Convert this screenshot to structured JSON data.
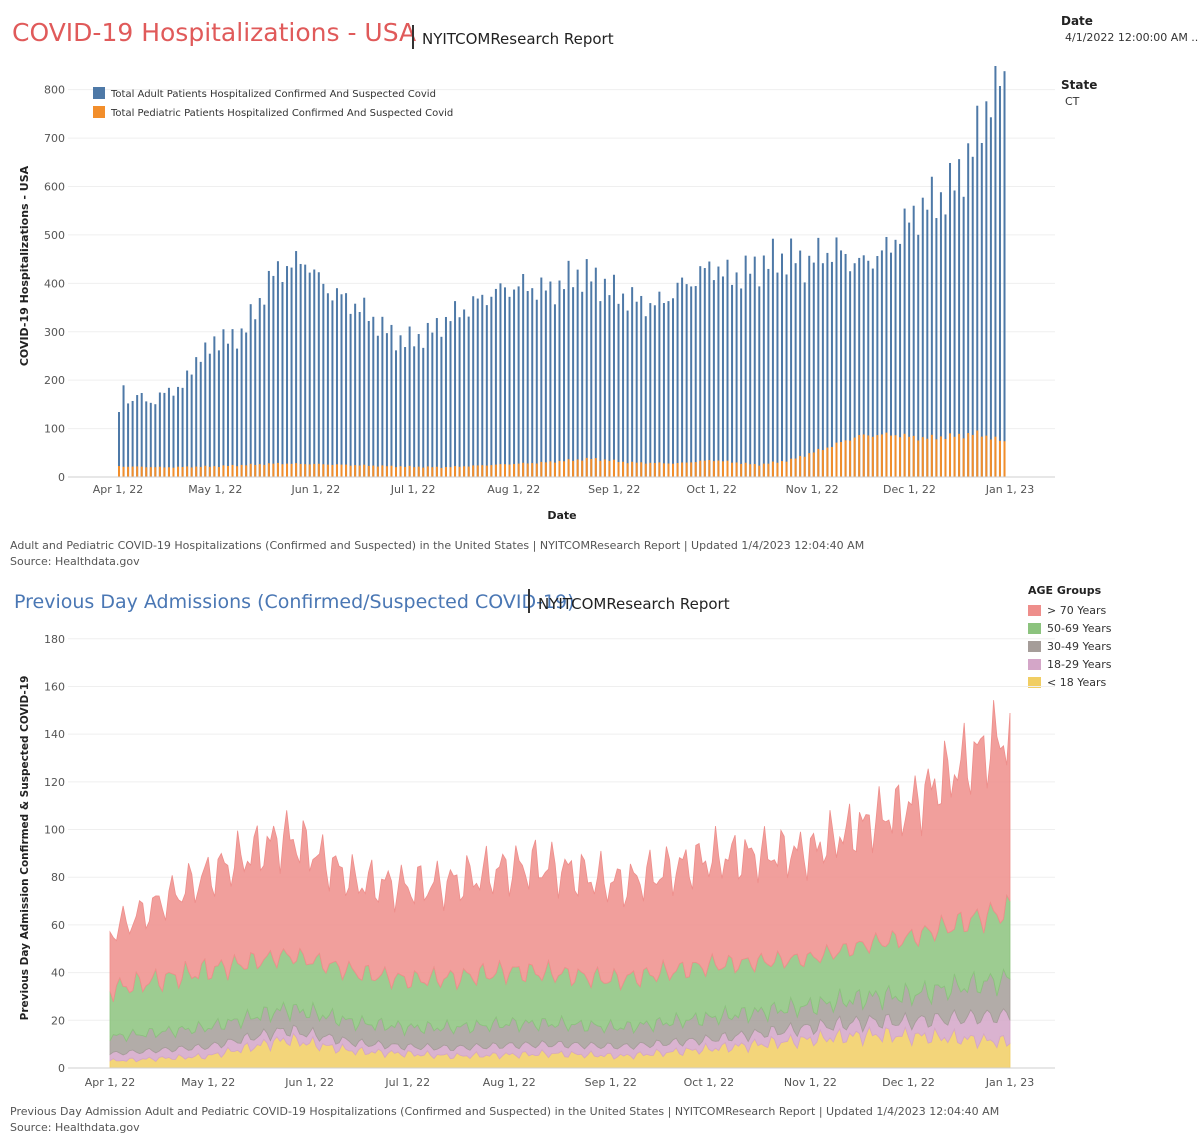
{
  "header": {
    "title": "COVID-19 Hospitalizations - USA",
    "report": "NYITCOMResearch Report"
  },
  "filters": {
    "date_label": "Date",
    "date_value": "4/1/2022 12:00:00 AM ..",
    "state_label": "State",
    "state_value": "CT"
  },
  "section2": {
    "title": "Previous Day Admissions (Confirmed/Suspected COVID-19)",
    "report": "NYITCOMResearch Report"
  },
  "footers": {
    "chart1_line1": "Adult and Pediatric COVID-19 Hospitalizations (Confirmed and Suspected) in the United States | NYITCOMResearch Report | Updated 1/4/2023 12:04:40 AM",
    "chart1_line2": "Source: Healthdata.gov",
    "chart2_line1": "Previous Day Admission Adult and Pediatric COVID-19 Hospitalizations (Confirmed and Suspected) in the United States | NYITCOMResearch Report | Updated 1/4/2023 12:04:40 AM",
    "chart2_line2": "Source: Healthdata.gov"
  },
  "chart_data": [
    {
      "type": "bar",
      "stacking": "overlay",
      "xlabel": "Date",
      "ylabel": "COVID-19 Hospitalizations - USA",
      "ylim": [
        0,
        820
      ],
      "yticks": [
        0,
        100,
        200,
        300,
        400,
        500,
        600,
        700,
        800
      ],
      "x_start": "2022-04-01",
      "x_end": "2023-01-01",
      "xticks": [
        "Apr 1, 22",
        "May 1, 22",
        "Jun 1, 22",
        "Jul 1, 22",
        "Aug 1, 22",
        "Sep 1, 22",
        "Oct 1, 22",
        "Nov 1, 22",
        "Dec 1, 22",
        "Jan 1, 23"
      ],
      "grid": "horizontal",
      "legend_position": "top-left",
      "series": [
        {
          "name": "Total Adult Patients Hospitalized Confirmed And Suspected Covid",
          "color": "#4e79a7",
          "points": [
            [
              "2022-04-01",
              130
            ],
            [
              "2022-04-02",
              210
            ],
            [
              "2022-04-04",
              150
            ],
            [
              "2022-04-08",
              170
            ],
            [
              "2022-04-12",
              150
            ],
            [
              "2022-04-16",
              185
            ],
            [
              "2022-04-20",
              175
            ],
            [
              "2022-04-24",
              240
            ],
            [
              "2022-04-28",
              255
            ],
            [
              "2022-05-01",
              290
            ],
            [
              "2022-05-05",
              280
            ],
            [
              "2022-05-09",
              300
            ],
            [
              "2022-05-13",
              340
            ],
            [
              "2022-05-16",
              390
            ],
            [
              "2022-05-19",
              420
            ],
            [
              "2022-05-22",
              435
            ],
            [
              "2022-05-26",
              440
            ],
            [
              "2022-05-29",
              450
            ],
            [
              "2022-06-01",
              410
            ],
            [
              "2022-06-05",
              385
            ],
            [
              "2022-06-09",
              370
            ],
            [
              "2022-06-13",
              355
            ],
            [
              "2022-06-17",
              335
            ],
            [
              "2022-06-21",
              310
            ],
            [
              "2022-06-25",
              290
            ],
            [
              "2022-06-28",
              280
            ],
            [
              "2022-07-01",
              285
            ],
            [
              "2022-07-05",
              295
            ],
            [
              "2022-07-08",
              310
            ],
            [
              "2022-07-12",
              330
            ],
            [
              "2022-07-16",
              345
            ],
            [
              "2022-07-20",
              360
            ],
            [
              "2022-07-25",
              380
            ],
            [
              "2022-07-30",
              390
            ],
            [
              "2022-08-04",
              395
            ],
            [
              "2022-08-08",
              390
            ],
            [
              "2022-08-12",
              385
            ],
            [
              "2022-08-16",
              400
            ],
            [
              "2022-08-20",
              420
            ],
            [
              "2022-08-24",
              415
            ],
            [
              "2022-08-28",
              400
            ],
            [
              "2022-09-01",
              380
            ],
            [
              "2022-09-05",
              370
            ],
            [
              "2022-09-09",
              360
            ],
            [
              "2022-09-13",
              355
            ],
            [
              "2022-09-17",
              370
            ],
            [
              "2022-09-21",
              395
            ],
            [
              "2022-09-26",
              410
            ],
            [
              "2022-10-01",
              440
            ],
            [
              "2022-10-05",
              415
            ],
            [
              "2022-10-10",
              420
            ],
            [
              "2022-10-15",
              435
            ],
            [
              "2022-10-20",
              450
            ],
            [
              "2022-10-25",
              455
            ],
            [
              "2022-10-30",
              440
            ],
            [
              "2022-11-03",
              460
            ],
            [
              "2022-11-08",
              470
            ],
            [
              "2022-11-12",
              450
            ],
            [
              "2022-11-16",
              440
            ],
            [
              "2022-11-20",
              455
            ],
            [
              "2022-11-24",
              470
            ],
            [
              "2022-11-28",
              510
            ],
            [
              "2022-12-02",
              540
            ],
            [
              "2022-12-06",
              565
            ],
            [
              "2022-12-10",
              575
            ],
            [
              "2022-12-14",
              600
            ],
            [
              "2022-12-18",
              650
            ],
            [
              "2022-12-21",
              690
            ],
            [
              "2022-12-24",
              760
            ],
            [
              "2022-12-27",
              815
            ],
            [
              "2022-12-31",
              815
            ]
          ]
        },
        {
          "name": "Total Pediatric Patients Hospitalized Confirmed And Suspected Covid",
          "color": "#f28e2b",
          "points": [
            [
              "2022-04-01",
              22
            ],
            [
              "2022-04-15",
              20
            ],
            [
              "2022-05-01",
              22
            ],
            [
              "2022-05-20",
              28
            ],
            [
              "2022-06-05",
              26
            ],
            [
              "2022-06-25",
              22
            ],
            [
              "2022-07-10",
              20
            ],
            [
              "2022-07-25",
              25
            ],
            [
              "2022-08-10",
              30
            ],
            [
              "2022-08-25",
              38
            ],
            [
              "2022-09-05",
              30
            ],
            [
              "2022-09-20",
              28
            ],
            [
              "2022-10-01",
              35
            ],
            [
              "2022-10-15",
              25
            ],
            [
              "2022-10-25",
              35
            ],
            [
              "2022-11-05",
              60
            ],
            [
              "2022-11-15",
              85
            ],
            [
              "2022-11-25",
              88
            ],
            [
              "2022-12-05",
              80
            ],
            [
              "2022-12-15",
              85
            ],
            [
              "2022-12-22",
              90
            ],
            [
              "2022-12-31",
              70
            ]
          ]
        }
      ]
    },
    {
      "type": "area",
      "stacking": "stacked",
      "ylabel": "Previous Day Admission Confirmed & Suspected COVID-19",
      "ylim": [
        0,
        182
      ],
      "yticks": [
        0,
        20,
        40,
        60,
        80,
        100,
        120,
        140,
        160,
        180
      ],
      "x_start": "2022-04-01",
      "x_end": "2023-01-01",
      "xticks": [
        "Apr 1, 22",
        "May 1, 22",
        "Jun 1, 22",
        "Jul 1, 22",
        "Aug 1, 22",
        "Sep 1, 22",
        "Oct 1, 22",
        "Nov 1, 22",
        "Dec 1, 22",
        "Jan 1, 23"
      ],
      "grid": "horizontal",
      "legend_title": "AGE Groups",
      "legend_position": "top-right",
      "series": [
        {
          "name": "< 18 Years",
          "color": "#f1ce63",
          "points": [
            [
              "2022-04-01",
              3
            ],
            [
              "2022-05-01",
              5
            ],
            [
              "2022-05-25",
              12
            ],
            [
              "2022-06-15",
              7
            ],
            [
              "2022-07-15",
              5
            ],
            [
              "2022-08-15",
              6
            ],
            [
              "2022-09-05",
              5
            ],
            [
              "2022-10-01",
              8
            ],
            [
              "2022-11-01",
              12
            ],
            [
              "2022-11-20",
              14
            ],
            [
              "2022-12-10",
              13
            ],
            [
              "2022-12-31",
              11
            ]
          ]
        },
        {
          "name": "18-29 Years",
          "color": "#d4a6c8",
          "points": [
            [
              "2022-04-01",
              3
            ],
            [
              "2022-05-01",
              4
            ],
            [
              "2022-06-01",
              4
            ],
            [
              "2022-07-01",
              3
            ],
            [
              "2022-08-01",
              4
            ],
            [
              "2022-09-01",
              4
            ],
            [
              "2022-10-01",
              4
            ],
            [
              "2022-11-01",
              5
            ],
            [
              "2022-12-01",
              6
            ],
            [
              "2022-12-31",
              11
            ]
          ]
        },
        {
          "name": "30-49 Years",
          "color": "#a59d99",
          "points": [
            [
              "2022-04-01",
              7
            ],
            [
              "2022-05-01",
              8
            ],
            [
              "2022-06-01",
              9
            ],
            [
              "2022-07-01",
              8
            ],
            [
              "2022-08-01",
              9
            ],
            [
              "2022-09-01",
              8
            ],
            [
              "2022-10-01",
              9
            ],
            [
              "2022-11-01",
              9
            ],
            [
              "2022-12-01",
              11
            ],
            [
              "2022-12-31",
              15
            ]
          ]
        },
        {
          "name": "50-69 Years",
          "color": "#8cc37e",
          "points": [
            [
              "2022-04-01",
              20
            ],
            [
              "2022-05-01",
              24
            ],
            [
              "2022-06-01",
              22
            ],
            [
              "2022-07-01",
              20
            ],
            [
              "2022-08-01",
              22
            ],
            [
              "2022-09-01",
              20
            ],
            [
              "2022-10-01",
              22
            ],
            [
              "2022-11-01",
              20
            ],
            [
              "2022-12-01",
              24
            ],
            [
              "2022-12-31",
              29
            ]
          ]
        },
        {
          "name": "> 70 Years",
          "color": "#ee8e8b",
          "points": [
            [
              "2022-04-01",
              24
            ],
            [
              "2022-05-01",
              40
            ],
            [
              "2022-05-25",
              50
            ],
            [
              "2022-06-15",
              38
            ],
            [
              "2022-07-15",
              40
            ],
            [
              "2022-08-10",
              45
            ],
            [
              "2022-09-05",
              40
            ],
            [
              "2022-10-01",
              45
            ],
            [
              "2022-11-01",
              45
            ],
            [
              "2022-12-01",
              55
            ],
            [
              "2022-12-20",
              68
            ],
            [
              "2022-12-27",
              72
            ],
            [
              "2022-12-31",
              73
            ]
          ]
        }
      ]
    }
  ]
}
